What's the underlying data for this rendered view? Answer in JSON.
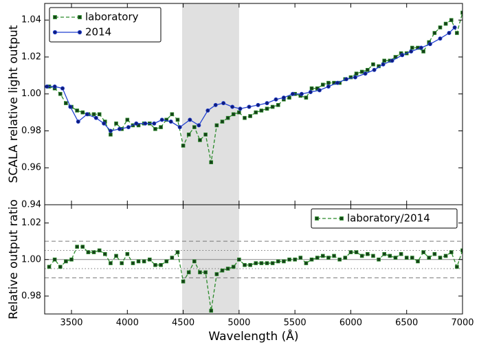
{
  "chart_data": [
    {
      "type": "line",
      "ylabel": "SCALA relative light output",
      "xlim": [
        3260,
        7000
      ],
      "ylim": [
        0.94,
        1.049
      ],
      "yticks": [
        0.94,
        0.96,
        0.98,
        {
          "value": 1.0,
          "label": "1.00"
        },
        1.02,
        1.04
      ],
      "span": [
        4490,
        5000
      ],
      "span_color": "#e0e0e0",
      "legend": "upper left",
      "series": [
        {
          "name": "laboratory",
          "color": "#2a8a2a",
          "marker_color": "#16401a",
          "marker": "square",
          "linestyle": "dashed",
          "x": [
            3300,
            3350,
            3400,
            3450,
            3500,
            3550,
            3600,
            3650,
            3700,
            3750,
            3800,
            3850,
            3900,
            3950,
            4000,
            4050,
            4100,
            4150,
            4200,
            4250,
            4300,
            4350,
            4400,
            4450,
            4500,
            4550,
            4600,
            4650,
            4700,
            4750,
            4800,
            4850,
            4900,
            4950,
            5000,
            5050,
            5100,
            5150,
            5200,
            5250,
            5300,
            5350,
            5400,
            5450,
            5500,
            5550,
            5600,
            5650,
            5700,
            5750,
            5800,
            5850,
            5900,
            5950,
            6000,
            6050,
            6100,
            6150,
            6200,
            6250,
            6300,
            6350,
            6400,
            6450,
            6500,
            6550,
            6600,
            6650,
            6700,
            6750,
            6800,
            6850,
            6900,
            6950,
            7000
          ],
          "values": [
            1.004,
            1.003,
            1.0,
            0.995,
            0.993,
            0.991,
            0.99,
            0.989,
            0.989,
            0.989,
            0.985,
            0.978,
            0.984,
            0.981,
            0.986,
            0.983,
            0.983,
            0.984,
            0.984,
            0.981,
            0.982,
            0.986,
            0.989,
            0.986,
            0.972,
            0.978,
            0.982,
            0.975,
            0.978,
            0.963,
            0.983,
            0.985,
            0.987,
            0.989,
            0.99,
            0.987,
            0.988,
            0.99,
            0.991,
            0.992,
            0.993,
            0.994,
            0.997,
            0.998,
            1.0,
            0.999,
            0.998,
            1.003,
            1.003,
            1.005,
            1.006,
            1.006,
            1.006,
            1.008,
            1.009,
            1.011,
            1.012,
            1.013,
            1.016,
            1.015,
            1.018,
            1.018,
            1.02,
            1.022,
            1.022,
            1.025,
            1.025,
            1.023,
            1.028,
            1.033,
            1.036,
            1.038,
            1.04,
            1.033,
            1.044
          ]
        },
        {
          "name": "2014",
          "color": "#1f3fd0",
          "marker_color": "#101c7a",
          "marker": "circle",
          "linestyle": "solid",
          "x": [
            3280,
            3350,
            3420,
            3490,
            3560,
            3640,
            3720,
            3790,
            3850,
            3930,
            4010,
            4080,
            4160,
            4240,
            4310,
            4390,
            4470,
            4560,
            4640,
            4720,
            4790,
            4860,
            4940,
            5010,
            5090,
            5170,
            5250,
            5330,
            5400,
            5480,
            5560,
            5640,
            5720,
            5800,
            5880,
            5960,
            6040,
            6130,
            6210,
            6290,
            6370,
            6460,
            6540,
            6630,
            6710,
            6800,
            6880,
            6930
          ],
          "values": [
            1.004,
            1.004,
            1.003,
            0.993,
            0.985,
            0.989,
            0.987,
            0.984,
            0.98,
            0.981,
            0.982,
            0.984,
            0.984,
            0.984,
            0.986,
            0.985,
            0.982,
            0.986,
            0.983,
            0.991,
            0.994,
            0.995,
            0.993,
            0.992,
            0.993,
            0.994,
            0.995,
            0.997,
            0.998,
            1.0,
            1.0,
            1.001,
            1.002,
            1.004,
            1.006,
            1.008,
            1.009,
            1.011,
            1.013,
            1.016,
            1.018,
            1.021,
            1.023,
            1.025,
            1.027,
            1.03,
            1.033,
            1.036
          ]
        }
      ]
    },
    {
      "type": "line",
      "ylabel": "Relative output ratio",
      "xlabel": "Wavelength (Å)",
      "xlim": [
        3260,
        7000
      ],
      "ylim": [
        0.9702,
        1.03
      ],
      "xticks": [
        3500,
        4000,
        4500,
        5000,
        5500,
        6000,
        6500,
        7000
      ],
      "yticks": [
        0.98,
        {
          "value": 1.0,
          "label": "1.00"
        },
        1.02
      ],
      "span": [
        4490,
        5000
      ],
      "span_color": "#e0e0e0",
      "hlines": [
        {
          "value": 1.01,
          "style": "dashed"
        },
        {
          "value": 0.99,
          "style": "dashed"
        },
        {
          "value": 1.005,
          "style": "dotted"
        },
        {
          "value": 0.995,
          "style": "dotted"
        },
        {
          "value": 1.0,
          "style": "solid"
        }
      ],
      "legend": "upper right",
      "series": [
        {
          "name": "laboratory/2014",
          "color": "#2a8a2a",
          "marker_color": "#16401a",
          "marker": "square",
          "linestyle": "dashed",
          "x": [
            3300,
            3350,
            3400,
            3450,
            3500,
            3550,
            3600,
            3650,
            3700,
            3750,
            3800,
            3850,
            3900,
            3950,
            4000,
            4050,
            4100,
            4150,
            4200,
            4250,
            4300,
            4350,
            4400,
            4450,
            4500,
            4550,
            4600,
            4650,
            4700,
            4750,
            4800,
            4850,
            4900,
            4950,
            5000,
            5050,
            5100,
            5150,
            5200,
            5250,
            5300,
            5350,
            5400,
            5450,
            5500,
            5550,
            5600,
            5650,
            5700,
            5750,
            5800,
            5850,
            5900,
            5950,
            6000,
            6050,
            6100,
            6150,
            6200,
            6250,
            6300,
            6350,
            6400,
            6450,
            6500,
            6550,
            6600,
            6650,
            6700,
            6750,
            6800,
            6850,
            6900,
            6950,
            7000
          ],
          "values": [
            0.996,
            1.0,
            0.996,
            0.999,
            1.0,
            1.007,
            1.007,
            1.004,
            1.004,
            1.005,
            1.003,
            0.998,
            1.002,
            0.998,
            1.003,
            0.998,
            0.999,
            0.999,
            1.0,
            0.997,
            0.997,
            0.999,
            1.001,
            1.004,
            0.988,
            0.993,
            0.999,
            0.993,
            0.993,
            0.972,
            0.992,
            0.994,
            0.995,
            0.996,
            1.0,
            0.997,
            0.997,
            0.998,
            0.998,
            0.998,
            0.998,
            0.999,
            0.999,
            1.0,
            1.0,
            1.001,
            0.998,
            1.0,
            1.001,
            1.002,
            1.001,
            1.002,
            1.0,
            1.001,
            1.004,
            1.004,
            1.002,
            1.003,
            1.002,
            1.0,
            1.003,
            1.002,
            1.001,
            1.003,
            1.001,
            1.001,
            0.999,
            1.004,
            1.001,
            1.003,
            1.001,
            1.002,
            1.004,
            0.996,
            1.005
          ]
        }
      ]
    }
  ]
}
